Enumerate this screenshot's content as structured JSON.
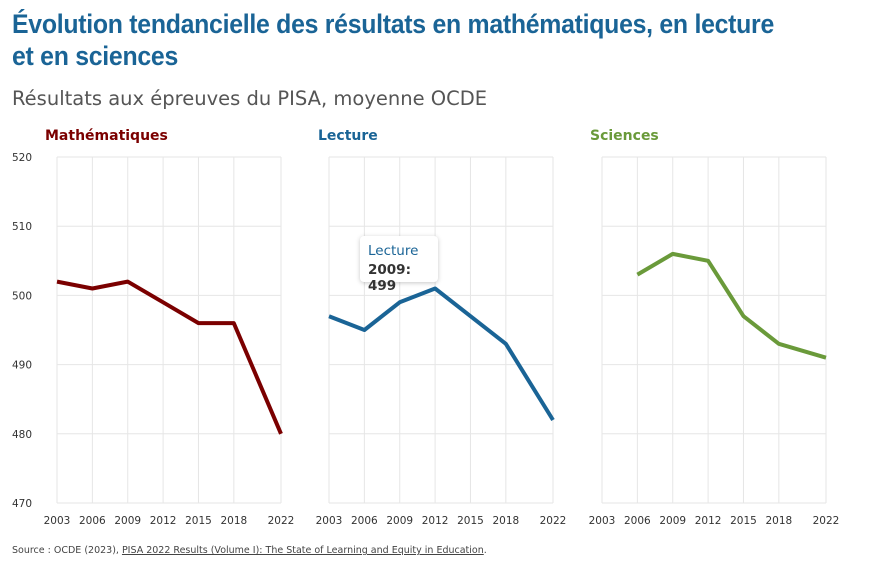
{
  "title": "Évolution tendancielle des résultats en mathématiques, en lecture et en sciences",
  "subtitle": "Résultats aux épreuves du PISA, moyenne OCDE",
  "tooltip": {
    "series": "Lecture",
    "value": "2009: 499"
  },
  "source": {
    "prefix": "Source : OCDE (2023), ",
    "link_text": "PISA 2022 Results (Volume I): The State of Learning and Equity in Education",
    "suffix": "."
  },
  "chart_data": [
    {
      "type": "line",
      "title": "Mathématiques",
      "color": "#7b0000",
      "x": [
        2003,
        2006,
        2009,
        2012,
        2015,
        2018,
        2022
      ],
      "values": [
        502,
        501,
        502,
        499,
        496,
        496,
        480
      ],
      "ylim": [
        470,
        520
      ],
      "yticks": [
        470,
        480,
        490,
        500,
        510,
        520
      ],
      "grid": true
    },
    {
      "type": "line",
      "title": "Lecture",
      "color": "#1a6496",
      "x": [
        2003,
        2006,
        2009,
        2012,
        2015,
        2018,
        2022
      ],
      "values": [
        497,
        495,
        499,
        501,
        497,
        493,
        482
      ],
      "ylim": [
        470,
        520
      ],
      "yticks": [
        470,
        480,
        490,
        500,
        510,
        520
      ],
      "grid": true
    },
    {
      "type": "line",
      "title": "Sciences",
      "color": "#6a9a3a",
      "x": [
        2003,
        2006,
        2009,
        2012,
        2015,
        2018,
        2022
      ],
      "values": [
        null,
        503,
        506,
        505,
        497,
        493,
        491
      ],
      "ylim": [
        470,
        520
      ],
      "yticks": [
        470,
        480,
        490,
        500,
        510,
        520
      ],
      "grid": true
    }
  ]
}
